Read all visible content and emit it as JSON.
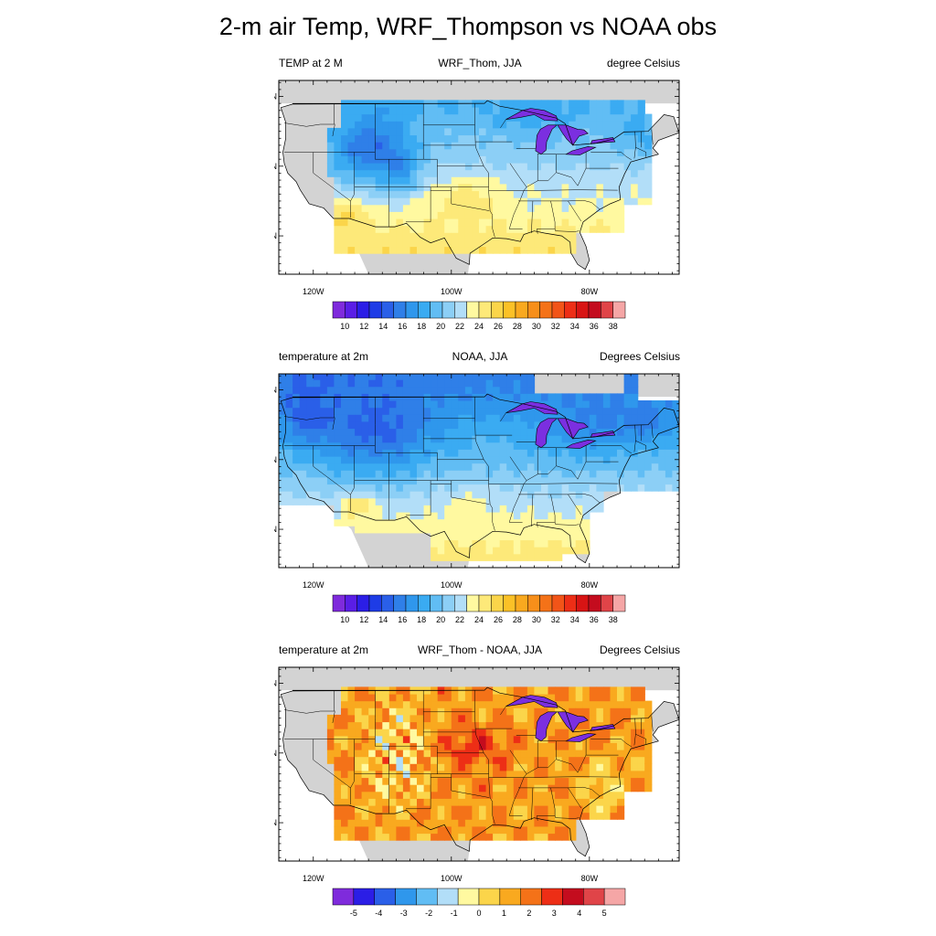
{
  "title": "2-m air Temp, WRF_Thompson vs NOAA obs",
  "colors": {
    "land": "#d3d3d3",
    "frame": "#000000",
    "lakes": "#7b2fe0",
    "temp_scale": [
      "#7f2bdc",
      "#5a1ee6",
      "#2b1ee6",
      "#1e3ce6",
      "#2a5fe8",
      "#2f7fe8",
      "#2f97ec",
      "#3aabf2",
      "#61bdf4",
      "#8ccff6",
      "#b2def8",
      "#fff9a0",
      "#fde979",
      "#fbd54a",
      "#fbc127",
      "#f9a91f",
      "#f78f1a",
      "#f47218",
      "#f25418",
      "#ed2e16",
      "#d81414",
      "#c40c1e",
      "#e04448",
      "#f5a6a6"
    ],
    "diff_scale": [
      "#7f2bdc",
      "#2b1ee6",
      "#2a5fe8",
      "#2f97ec",
      "#61bdf4",
      "#b2def8",
      "#fff9a0",
      "#fbd54a",
      "#f9a91f",
      "#f47218",
      "#ed2e16",
      "#c40c1e",
      "#e04448",
      "#f5a6a6"
    ]
  },
  "panels": [
    {
      "left_title": "TEMP at 2 M",
      "center_title": "WRF_Thom, JJA",
      "right_title": "degree Celsius",
      "lat_labels": [
        "50N",
        "40N",
        "30N"
      ],
      "lon_labels": [
        "120W",
        "100W",
        "80W"
      ],
      "colorbar_labels": [
        "10",
        "12",
        "14",
        "16",
        "18",
        "20",
        "22",
        "24",
        "26",
        "28",
        "30",
        "32",
        "34",
        "36",
        "38"
      ],
      "field": "wrf"
    },
    {
      "left_title": "temperature at 2m",
      "center_title": "NOAA, JJA",
      "right_title": "Degrees Celsius",
      "lat_labels": [
        "50N",
        "40N",
        "30N"
      ],
      "lon_labels": [
        "120W",
        "100W",
        "80W"
      ],
      "colorbar_labels": [
        "10",
        "12",
        "14",
        "16",
        "18",
        "20",
        "22",
        "24",
        "26",
        "28",
        "30",
        "32",
        "34",
        "36",
        "38"
      ],
      "field": "noaa"
    },
    {
      "left_title": "temperature at 2m",
      "center_title": "WRF_Thom - NOAA, JJA",
      "right_title": "Degrees Celsius",
      "lat_labels": [
        "50N",
        "40N",
        "30N"
      ],
      "lon_labels": [
        "120W",
        "100W",
        "80W"
      ],
      "colorbar_labels": [
        "-5",
        "-4",
        "-3",
        "-2",
        "-1",
        "0",
        "1",
        "2",
        "3",
        "4",
        "5"
      ],
      "field": "diff"
    }
  ]
}
